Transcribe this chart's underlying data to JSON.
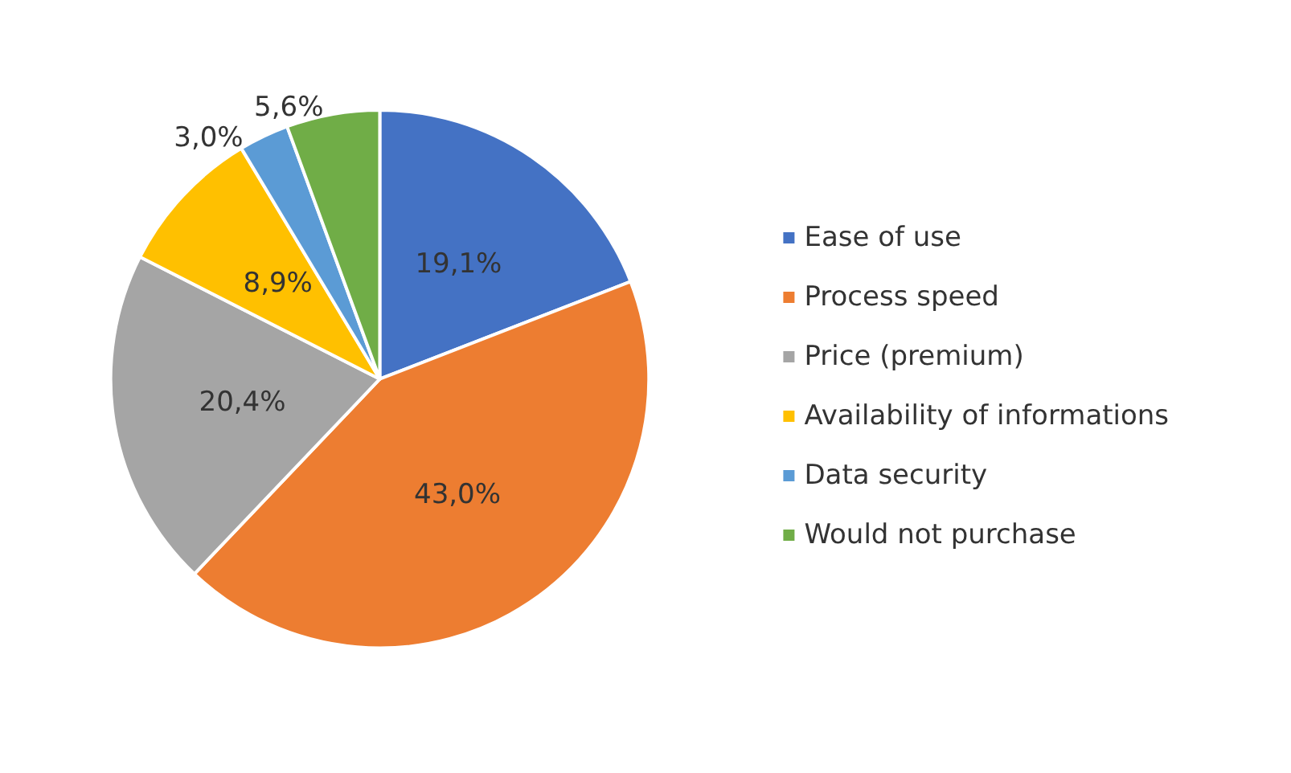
{
  "chart_data": {
    "type": "pie",
    "categories": [
      "Ease of use",
      "Process speed",
      "Price (premium)",
      "Availability of informations",
      "Data security",
      "Would not purchase"
    ],
    "values": [
      19.1,
      43.0,
      20.4,
      8.9,
      3.0,
      5.6
    ],
    "value_labels": [
      "19,1%",
      "43,0%",
      "20,4%",
      "8,9%",
      "3,0%",
      "5,6%"
    ],
    "colors": [
      "#4472c4",
      "#ed7d31",
      "#a5a5a5",
      "#ffc000",
      "#5b9bd5",
      "#70ad47"
    ],
    "legend": "right"
  }
}
